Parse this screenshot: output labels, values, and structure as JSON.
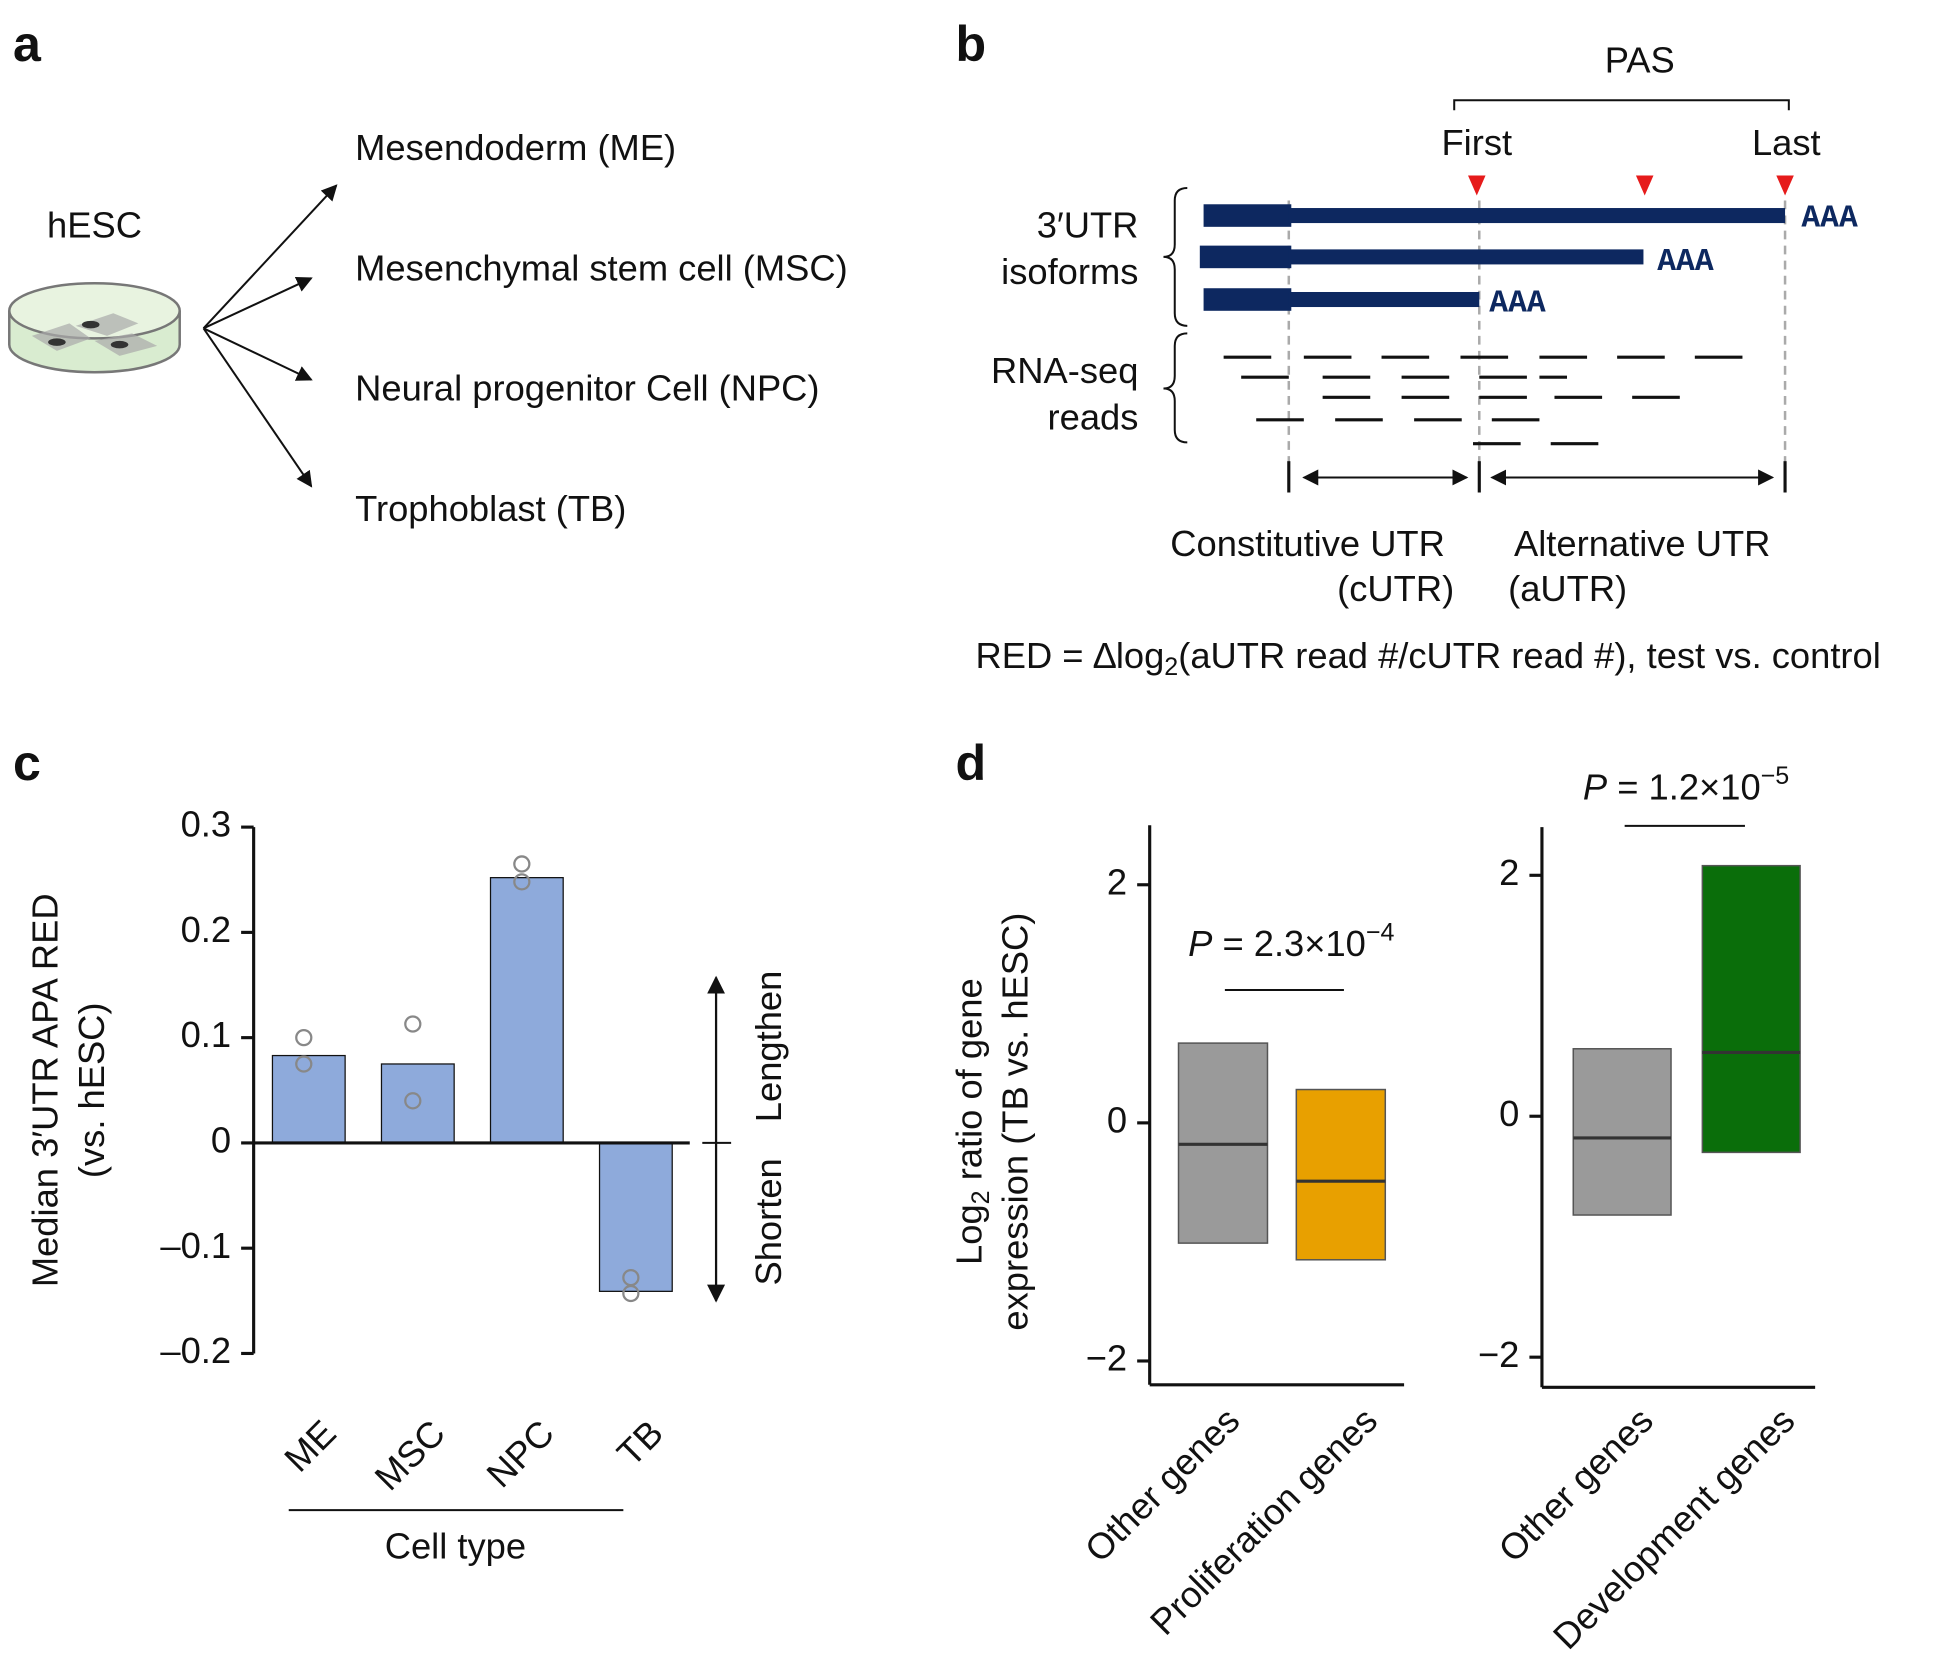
{
  "panels": {
    "a": {
      "label": "a",
      "source": "hESC",
      "targets": [
        "Mesendoderm (ME)",
        "Mesenchymal stem cell (MSC)",
        "Neural progenitor Cell (NPC)",
        "Trophoblast (TB)"
      ]
    },
    "b": {
      "label": "b",
      "pas": "PAS",
      "first": "First",
      "last": "Last",
      "isoforms_label": [
        "3′UTR",
        "isoforms"
      ],
      "poly_a": "AAA",
      "reads_label": [
        "RNA-seq",
        "reads"
      ],
      "cutr": [
        "Constitutive UTR",
        "(cUTR)"
      ],
      "autr": [
        "Alternative UTR",
        "(aUTR)"
      ],
      "formula": [
        "RED = ∆log",
        "2",
        "(aUTR read #/cUTR read #), test vs. control"
      ]
    }
  },
  "chart_data": [
    {
      "type": "bar",
      "panel": "c",
      "categories": [
        "ME",
        "MSC",
        "NPC",
        "TB"
      ],
      "values": [
        0.083,
        0.075,
        0.252,
        -0.141
      ],
      "replicates": [
        [
          0.1,
          0.075
        ],
        [
          0.113,
          0.04
        ],
        [
          0.265,
          0.248
        ],
        [
          -0.128,
          -0.143
        ]
      ],
      "color": "#8eaadb",
      "ylim": [
        -0.2,
        0.3
      ],
      "yticks": [
        0.3,
        0.2,
        0.1,
        0,
        {
          "value": -0.1,
          "label": "–0.1"
        },
        {
          "value": -0.2,
          "label": "–0.2"
        }
      ],
      "ylabel": [
        "Median 3′UTR APA RED",
        "(vs. hESC)"
      ],
      "xlabel": "Cell type",
      "annotations": [
        "Lengthen",
        "Shorten"
      ]
    },
    {
      "type": "box",
      "panel": "d",
      "ylim": [
        -2.2,
        2.5
      ],
      "yticks": [
        2,
        0,
        {
          "value": -2,
          "label": "−2"
        }
      ],
      "ylabel": [
        "Log",
        "2",
        " ratio of gene",
        "expression (TB vs. hESC)"
      ],
      "pvalue": [
        "P",
        " = 2.3×10",
        "−4"
      ],
      "series": [
        {
          "name": "Other genes",
          "color": "#9a9a9a",
          "q1": -1.01,
          "median": -0.18,
          "q3": 0.67
        },
        {
          "name": "Proliferation genes",
          "color": "#e8a000",
          "q1": -1.15,
          "median": -0.49,
          "q3": 0.28
        }
      ]
    },
    {
      "type": "box",
      "ylim": [
        -2.25,
        2.4
      ],
      "yticks": [
        2,
        0,
        {
          "value": -2,
          "label": "−2"
        }
      ],
      "pvalue": [
        "P",
        " = 1.2×10",
        "−5"
      ],
      "series": [
        {
          "name": "Other genes",
          "color": "#9a9a9a",
          "q1": -0.82,
          "median": -0.18,
          "q3": 0.56
        },
        {
          "name": "Development genes",
          "color": "#0a6e0a",
          "q1": -0.3,
          "median": 0.53,
          "q3": 2.08
        }
      ]
    }
  ]
}
